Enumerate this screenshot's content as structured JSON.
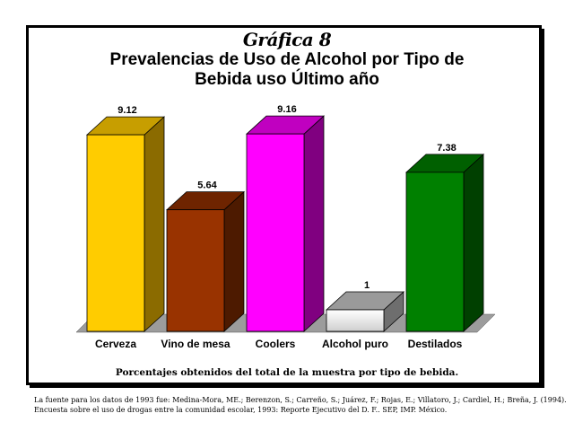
{
  "chart_data": {
    "type": "bar",
    "title_line1": "Gráfica 8",
    "title_line2": "Prevalencias de Uso de Alcohol por Tipo de",
    "title_line3": "Bebida uso Último año",
    "categories": [
      "Cerveza",
      "Vino de mesa",
      "Coolers",
      "Alcohol puro",
      "Destilados"
    ],
    "values": [
      9.12,
      5.64,
      9.16,
      1,
      7.38
    ],
    "value_labels": [
      "9.12",
      "5.64",
      "9.16",
      "1",
      "7.38"
    ],
    "ylim": [
      0,
      10
    ],
    "grid": false,
    "legend": "none",
    "style": "3d-bars",
    "bar_colors": [
      {
        "front": "#FFCC00",
        "side": "#8B6B00",
        "top": "#C79E00"
      },
      {
        "front": "#993300",
        "side": "#4D1A00",
        "top": "#6E2400"
      },
      {
        "front": "#FF00FF",
        "side": "#800080",
        "top": "#C000C0"
      },
      {
        "front": "#F0F0F0",
        "side": "#6E6E6E",
        "top": "#9A9A9A"
      },
      {
        "front": "#008000",
        "side": "#004000",
        "top": "#006000"
      }
    ],
    "floor_color": "#9C9C9C"
  },
  "note": "Porcentajes obtenidos del total de la muestra por tipo de bebida.",
  "source": {
    "line1": "La fuente para los datos de 1993 fue: Medina-Mora, ME.; Berenzon, S.; Carreño, S.; Juárez, F.; Rojas, E.; Villatoro, J.; Cardiel, H.; Breña, J. (1994).",
    "line2": "Encuesta sobre el uso de drogas entre la comunidad escolar, 1993: Reporte Ejecutivo del D. F.. SEP, IMP. México."
  }
}
